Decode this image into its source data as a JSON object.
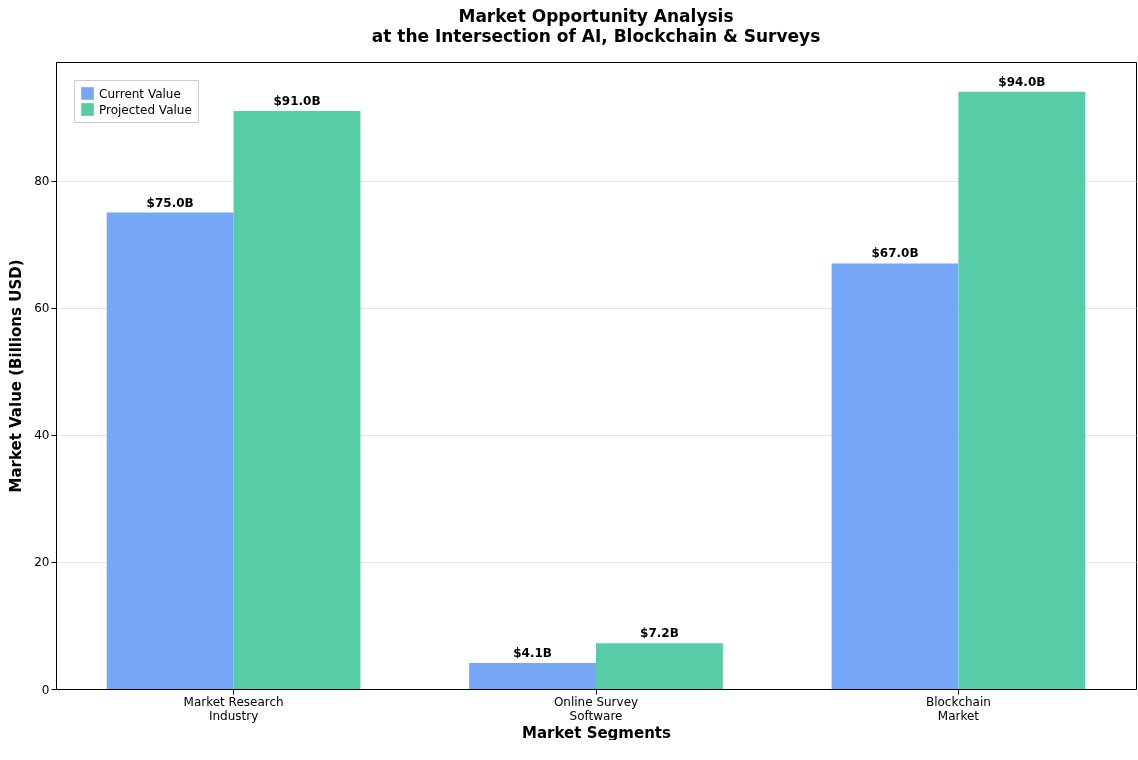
{
  "chart_data": {
    "type": "bar",
    "title": "Market Opportunity Analysis",
    "subtitle": "at the Intersection of AI, Blockchain & Surveys",
    "xlabel": "Market Segments",
    "ylabel": "Market Value (Billions USD)",
    "categories": [
      "Market Research\nIndustry",
      "Online Survey\nSoftware",
      "Blockchain\nMarket"
    ],
    "series": [
      {
        "name": "Current Value",
        "color": "#76a7f7",
        "values": [
          75.0,
          4.1,
          67.0
        ],
        "value_labels": [
          "$75.0B",
          "$4.1B",
          "$67.0B"
        ]
      },
      {
        "name": "Projected Value",
        "color": "#57cca6",
        "values": [
          91.0,
          7.2,
          94.0
        ],
        "value_labels": [
          "$91.0B",
          "$7.2B",
          "$94.0B"
        ]
      }
    ],
    "ylim": [
      0,
      98.7
    ],
    "yticks": [
      0,
      20,
      40,
      60,
      80
    ],
    "grid": "y",
    "legend": "top left"
  }
}
